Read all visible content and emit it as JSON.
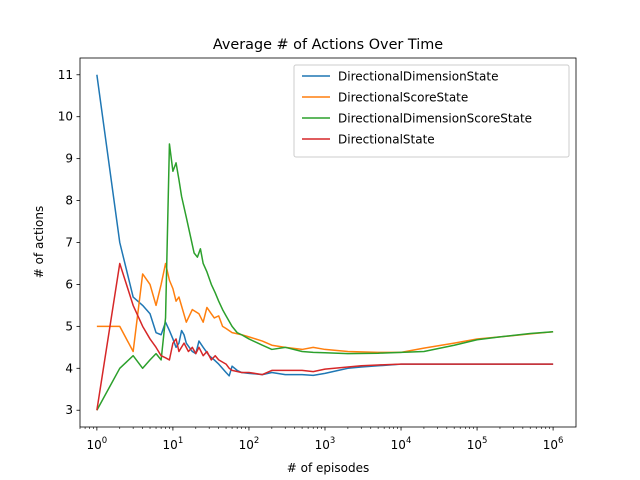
{
  "chart_data": {
    "type": "line",
    "title": "Average # of Actions Over Time",
    "xlabel": "# of episodes",
    "ylabel": "# of actions",
    "x_scale": "log",
    "xlim": [
      0.6,
      2000000
    ],
    "ylim": [
      2.6,
      11.4
    ],
    "x_ticks": [
      {
        "value": 1,
        "base": "10",
        "exp": "0"
      },
      {
        "value": 10,
        "base": "10",
        "exp": "1"
      },
      {
        "value": 100,
        "base": "10",
        "exp": "2"
      },
      {
        "value": 1000,
        "base": "10",
        "exp": "3"
      },
      {
        "value": 10000,
        "base": "10",
        "exp": "4"
      },
      {
        "value": 100000,
        "base": "10",
        "exp": "5"
      },
      {
        "value": 1000000,
        "base": "10",
        "exp": "6"
      }
    ],
    "y_ticks": [
      "3",
      "4",
      "5",
      "6",
      "7",
      "8",
      "9",
      "10",
      "11"
    ],
    "grid": false,
    "legend_position": "top-right",
    "series": [
      {
        "name": "DirectionalDimensionState",
        "color": "#1f77b4",
        "points": [
          [
            1,
            11
          ],
          [
            2,
            7
          ],
          [
            3,
            5.7
          ],
          [
            4,
            5.5
          ],
          [
            5,
            5.3
          ],
          [
            6,
            4.85
          ],
          [
            7,
            4.8
          ],
          [
            8,
            5.1
          ],
          [
            9,
            4.9
          ],
          [
            10,
            4.7
          ],
          [
            11,
            4.5
          ],
          [
            12,
            4.6
          ],
          [
            13,
            4.9
          ],
          [
            14,
            4.8
          ],
          [
            15,
            4.6
          ],
          [
            18,
            4.4
          ],
          [
            20,
            4.35
          ],
          [
            22,
            4.65
          ],
          [
            25,
            4.5
          ],
          [
            30,
            4.3
          ],
          [
            35,
            4.2
          ],
          [
            40,
            4.1
          ],
          [
            50,
            3.9
          ],
          [
            55,
            3.82
          ],
          [
            60,
            4.05
          ],
          [
            70,
            3.95
          ],
          [
            80,
            3.9
          ],
          [
            100,
            3.88
          ],
          [
            150,
            3.85
          ],
          [
            200,
            3.9
          ],
          [
            300,
            3.85
          ],
          [
            500,
            3.85
          ],
          [
            700,
            3.83
          ],
          [
            1000,
            3.88
          ],
          [
            1500,
            3.95
          ],
          [
            2000,
            4.0
          ],
          [
            3000,
            4.03
          ],
          [
            5000,
            4.06
          ],
          [
            10000,
            4.1
          ],
          [
            30000,
            4.1
          ],
          [
            100000,
            4.1
          ],
          [
            300000,
            4.1
          ],
          [
            1000000,
            4.1
          ]
        ]
      },
      {
        "name": "DirectionalScoreState",
        "color": "#ff7f0e",
        "points": [
          [
            1,
            5
          ],
          [
            2,
            5
          ],
          [
            3,
            4.4
          ],
          [
            4,
            6.25
          ],
          [
            5,
            6.0
          ],
          [
            6,
            5.5
          ],
          [
            7,
            6.0
          ],
          [
            8,
            6.5
          ],
          [
            9,
            6.1
          ],
          [
            10,
            5.9
          ],
          [
            11,
            5.6
          ],
          [
            12,
            5.7
          ],
          [
            15,
            5.1
          ],
          [
            18,
            5.4
          ],
          [
            22,
            5.3
          ],
          [
            25,
            5.1
          ],
          [
            28,
            5.45
          ],
          [
            32,
            5.3
          ],
          [
            35,
            5.2
          ],
          [
            40,
            5.25
          ],
          [
            45,
            5.0
          ],
          [
            50,
            4.95
          ],
          [
            60,
            4.85
          ],
          [
            80,
            4.8
          ],
          [
            100,
            4.75
          ],
          [
            150,
            4.65
          ],
          [
            200,
            4.55
          ],
          [
            300,
            4.5
          ],
          [
            500,
            4.45
          ],
          [
            700,
            4.5
          ],
          [
            1000,
            4.45
          ],
          [
            2000,
            4.4
          ],
          [
            5000,
            4.38
          ],
          [
            10000,
            4.38
          ],
          [
            20000,
            4.48
          ],
          [
            50000,
            4.6
          ],
          [
            100000,
            4.7
          ],
          [
            200000,
            4.75
          ],
          [
            500000,
            4.82
          ],
          [
            1000000,
            4.87
          ]
        ]
      },
      {
        "name": "DirectionalDimensionScoreState",
        "color": "#2ca02c",
        "points": [
          [
            1,
            3
          ],
          [
            2,
            4.0
          ],
          [
            3,
            4.3
          ],
          [
            4,
            4.0
          ],
          [
            5,
            4.2
          ],
          [
            6,
            4.35
          ],
          [
            7,
            4.2
          ],
          [
            8,
            5.2
          ],
          [
            9,
            9.35
          ],
          [
            10,
            8.7
          ],
          [
            11,
            8.9
          ],
          [
            12,
            8.5
          ],
          [
            13,
            8.1
          ],
          [
            15,
            7.6
          ],
          [
            17,
            7.15
          ],
          [
            19,
            6.75
          ],
          [
            21,
            6.65
          ],
          [
            23,
            6.85
          ],
          [
            25,
            6.5
          ],
          [
            28,
            6.3
          ],
          [
            32,
            6.0
          ],
          [
            36,
            5.8
          ],
          [
            40,
            5.6
          ],
          [
            45,
            5.4
          ],
          [
            50,
            5.25
          ],
          [
            60,
            5.0
          ],
          [
            70,
            4.85
          ],
          [
            80,
            4.8
          ],
          [
            100,
            4.7
          ],
          [
            150,
            4.55
          ],
          [
            200,
            4.45
          ],
          [
            300,
            4.5
          ],
          [
            500,
            4.4
          ],
          [
            700,
            4.38
          ],
          [
            1000,
            4.37
          ],
          [
            2000,
            4.35
          ],
          [
            5000,
            4.36
          ],
          [
            10000,
            4.38
          ],
          [
            20000,
            4.4
          ],
          [
            50000,
            4.55
          ],
          [
            100000,
            4.68
          ],
          [
            200000,
            4.75
          ],
          [
            500000,
            4.83
          ],
          [
            1000000,
            4.87
          ]
        ]
      },
      {
        "name": "DirectionalState",
        "color": "#d62728",
        "points": [
          [
            1,
            3
          ],
          [
            2,
            6.5
          ],
          [
            3,
            5.5
          ],
          [
            4,
            5.0
          ],
          [
            5,
            4.7
          ],
          [
            6,
            4.5
          ],
          [
            7,
            4.3
          ],
          [
            8,
            4.25
          ],
          [
            9,
            4.2
          ],
          [
            10,
            4.6
          ],
          [
            11,
            4.7
          ],
          [
            12,
            4.4
          ],
          [
            14,
            4.6
          ],
          [
            16,
            4.4
          ],
          [
            18,
            4.5
          ],
          [
            20,
            4.35
          ],
          [
            22,
            4.5
          ],
          [
            25,
            4.3
          ],
          [
            28,
            4.4
          ],
          [
            32,
            4.2
          ],
          [
            36,
            4.3
          ],
          [
            40,
            4.2
          ],
          [
            50,
            4.1
          ],
          [
            55,
            4.0
          ],
          [
            60,
            3.95
          ],
          [
            80,
            3.9
          ],
          [
            100,
            3.9
          ],
          [
            150,
            3.85
          ],
          [
            200,
            3.95
          ],
          [
            300,
            3.95
          ],
          [
            500,
            3.95
          ],
          [
            700,
            3.92
          ],
          [
            1000,
            3.98
          ],
          [
            2000,
            4.03
          ],
          [
            3000,
            4.06
          ],
          [
            5000,
            4.08
          ],
          [
            10000,
            4.1
          ],
          [
            30000,
            4.1
          ],
          [
            100000,
            4.1
          ],
          [
            300000,
            4.1
          ],
          [
            1000000,
            4.1
          ]
        ]
      }
    ]
  }
}
